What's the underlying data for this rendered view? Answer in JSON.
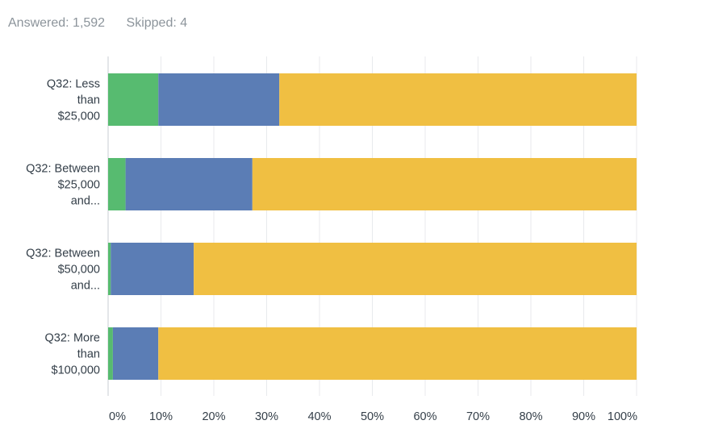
{
  "summary": {
    "answered": "Answered: 1,592",
    "skipped": "Skipped: 4"
  },
  "chart_data": {
    "type": "bar",
    "orientation": "horizontal",
    "stacked": true,
    "categories": [
      [
        "Q32: Less",
        "than",
        "$25,000"
      ],
      [
        "Q32: Between",
        "$25,000",
        "and..."
      ],
      [
        "Q32: Between",
        "$50,000",
        "and..."
      ],
      [
        "Q32: More",
        "than",
        "$100,000"
      ]
    ],
    "series": [
      {
        "color": "#57bb70",
        "values": [
          9.5,
          3.3,
          0.5,
          0.9
        ]
      },
      {
        "color": "#5b7db5",
        "values": [
          22.9,
          24.0,
          15.7,
          8.6
        ]
      },
      {
        "color": "#f0bf42",
        "values": [
          67.6,
          72.7,
          83.8,
          90.5
        ]
      }
    ],
    "xlim": [
      0,
      100
    ],
    "xticks": [
      "0%",
      "10%",
      "20%",
      "30%",
      "40%",
      "50%",
      "60%",
      "70%",
      "80%",
      "90%",
      "100%"
    ],
    "grid": true,
    "legend": "none"
  }
}
